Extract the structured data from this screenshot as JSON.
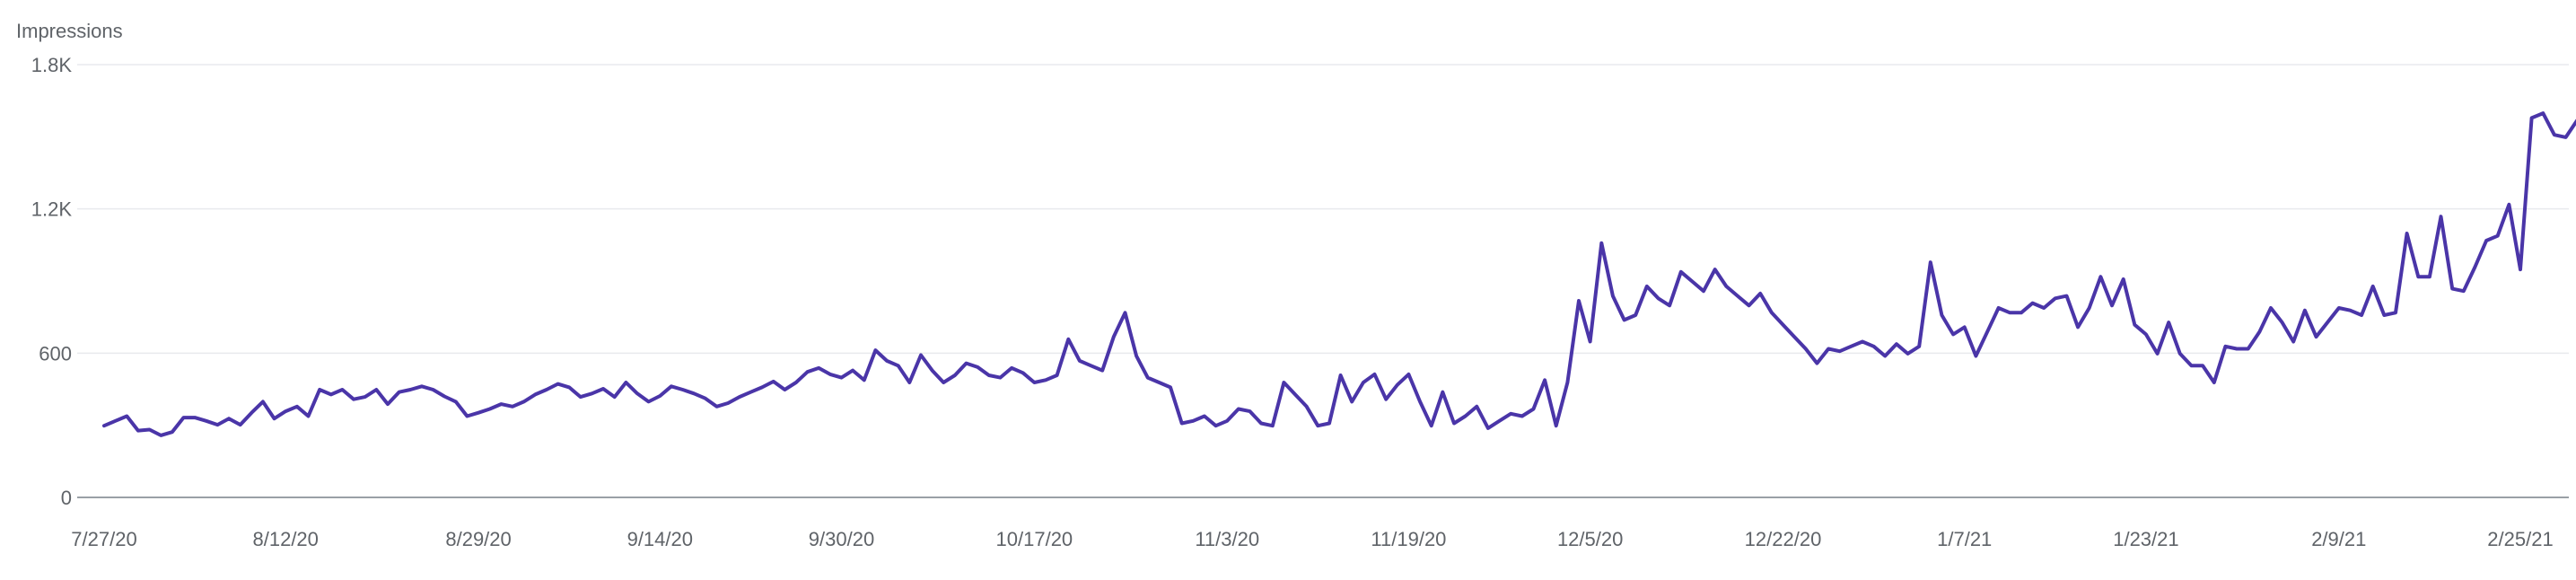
{
  "chart_data": {
    "type": "line",
    "ylabel": "Impressions",
    "ylim": [
      0,
      1800
    ],
    "y_ticks": [
      {
        "value": 0,
        "label": "0"
      },
      {
        "value": 600,
        "label": "600"
      },
      {
        "value": 1200,
        "label": "1.2K"
      },
      {
        "value": 1800,
        "label": "1.8K"
      }
    ],
    "x_tick_labels": [
      "7/27/20",
      "8/12/20",
      "8/29/20",
      "9/14/20",
      "9/30/20",
      "10/17/20",
      "11/3/20",
      "11/19/20",
      "12/5/20",
      "12/22/20",
      "1/7/21",
      "1/23/21",
      "2/9/21",
      "2/25/21"
    ],
    "x_tick_dates": [
      "2020-07-27",
      "2020-08-12",
      "2020-08-29",
      "2020-09-14",
      "2020-09-30",
      "2020-10-17",
      "2020-11-03",
      "2020-11-19",
      "2020-12-05",
      "2020-12-22",
      "2021-01-07",
      "2021-01-23",
      "2021-02-09",
      "2021-02-25"
    ],
    "grid": true,
    "x_start": "2020-07-27",
    "x_end": "2021-03-03",
    "series": [
      {
        "color": "#4a35a8",
        "values": [
          298,
          318,
          338,
          278,
          282,
          258,
          272,
          332,
          332,
          318,
          302,
          328,
          302,
          352,
          398,
          328,
          358,
          378,
          338,
          448,
          428,
          448,
          408,
          418,
          448,
          388,
          438,
          448,
          462,
          448,
          420,
          398,
          338,
          352,
          368,
          388,
          378,
          398,
          428,
          448,
          472,
          458,
          418,
          432,
          452,
          418,
          478,
          432,
          398,
          422,
          462,
          448,
          432,
          412,
          378,
          392,
          418,
          438,
          458,
          482,
          448,
          478,
          522,
          538,
          512,
          498,
          528,
          488,
          612,
          568,
          548,
          478,
          592,
          528,
          478,
          508,
          558,
          542,
          508,
          498,
          538,
          518,
          478,
          488,
          508,
          658,
          568,
          548,
          528,
          668,
          768,
          588,
          498,
          478,
          458,
          308,
          318,
          338,
          298,
          318,
          368,
          358,
          308,
          298,
          478,
          428,
          378,
          298,
          308,
          508,
          398,
          478,
          512,
          408,
          468,
          512,
          398,
          298,
          438,
          308,
          338,
          378,
          288,
          318,
          348,
          338,
          368,
          488,
          298,
          478,
          818,
          648,
          1058,
          838,
          738,
          758,
          878,
          828,
          798,
          938,
          898,
          858,
          948,
          878,
          838,
          798,
          848,
          768,
          718,
          668,
          618,
          558,
          618,
          608,
          628,
          648,
          628,
          588,
          638,
          598,
          628,
          978,
          758,
          678,
          708,
          588,
          688,
          788,
          768,
          768,
          808,
          788,
          828,
          838,
          708,
          788,
          918,
          798,
          908,
          718,
          678,
          598,
          728,
          598,
          548,
          548,
          478,
          628,
          618,
          618,
          688,
          788,
          728,
          648,
          778,
          668,
          728,
          788,
          778,
          758,
          878,
          758,
          768,
          1098,
          918,
          918,
          1168,
          868,
          858,
          958,
          1068,
          1088,
          1218,
          948,
          1578,
          1598,
          1508,
          1498,
          1568
        ]
      }
    ]
  }
}
